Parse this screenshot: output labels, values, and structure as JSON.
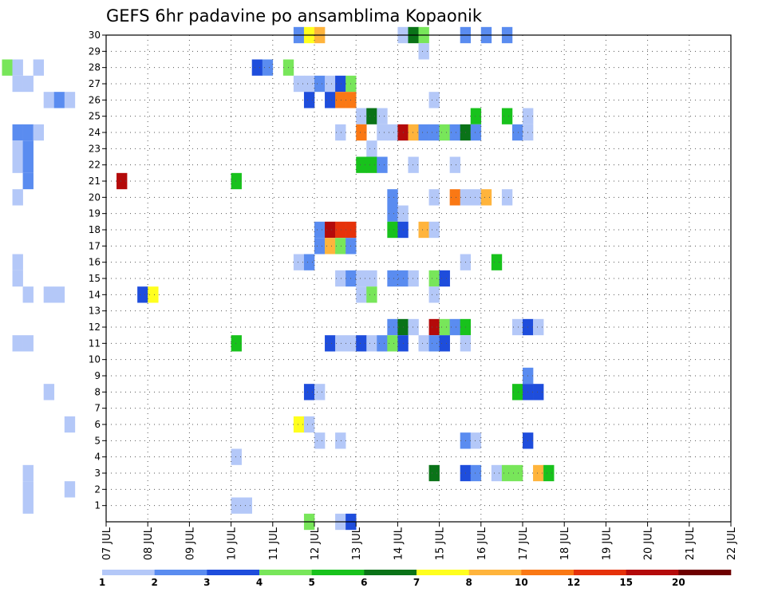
{
  "chart_data": {
    "type": "heatmap",
    "title": "GEFS 6hr padavine po ansamblima Kopaonik",
    "x_ticks": [
      "07 JUL",
      "08 JUL",
      "09 JUL",
      "10 JUL",
      "11 JUL",
      "12 JUL",
      "13 JUL",
      "14 JUL",
      "15 JUL",
      "16 JUL",
      "17 JUL",
      "18 JUL",
      "19 JUL",
      "20 JUL",
      "21 JUL",
      "22 JUL"
    ],
    "y_ticks": [
      1,
      2,
      3,
      4,
      5,
      6,
      7,
      8,
      9,
      10,
      11,
      12,
      13,
      14,
      15,
      16,
      17,
      18,
      19,
      20,
      21,
      22,
      23,
      24,
      25,
      26,
      27,
      28,
      29,
      30
    ],
    "x_start_day": 7,
    "x_end_day": 22,
    "x_step_hours": 6,
    "ylim": [
      0,
      30
    ],
    "grid": true,
    "colorbar": {
      "levels": [
        "1",
        "2",
        "3",
        "4",
        "5",
        "6",
        "7",
        "8",
        "10",
        "12",
        "15",
        "20"
      ],
      "colors": [
        "#b4c8f8",
        "#5a8cf0",
        "#1e4ddc",
        "#78e65a",
        "#18c21c",
        "#0a7318",
        "#ffff1e",
        "#ffb43c",
        "#fa7814",
        "#e6320a",
        "#b40a0a",
        "#6e0000"
      ]
    },
    "cells": [
      [
        11.5,
        30,
        2
      ],
      [
        11.75,
        30,
        7
      ],
      [
        12,
        30,
        8
      ],
      [
        14,
        30,
        1
      ],
      [
        14.25,
        30,
        6
      ],
      [
        14.5,
        30,
        4
      ],
      [
        15.5,
        30,
        2
      ],
      [
        16,
        30,
        2
      ],
      [
        16.5,
        30,
        2
      ],
      [
        14.5,
        29,
        1
      ],
      [
        4.5,
        28,
        4
      ],
      [
        4.75,
        28,
        1
      ],
      [
        5.25,
        28,
        1
      ],
      [
        10.5,
        28,
        3
      ],
      [
        10.75,
        28,
        2
      ],
      [
        11.25,
        28,
        4
      ],
      [
        4.75,
        27,
        1
      ],
      [
        5,
        27,
        1
      ],
      [
        11.5,
        27,
        1
      ],
      [
        11.75,
        27,
        1
      ],
      [
        12,
        27,
        2
      ],
      [
        12.25,
        27,
        1
      ],
      [
        12.5,
        27,
        3
      ],
      [
        12.75,
        27,
        4
      ],
      [
        5.5,
        26,
        1
      ],
      [
        5.75,
        26,
        2
      ],
      [
        6,
        26,
        1
      ],
      [
        11.75,
        26,
        3
      ],
      [
        12.25,
        26,
        3
      ],
      [
        12.5,
        26,
        9
      ],
      [
        12.75,
        26,
        9
      ],
      [
        14.75,
        26,
        1
      ],
      [
        13,
        25,
        1
      ],
      [
        13.25,
        25,
        6
      ],
      [
        13.5,
        25,
        1
      ],
      [
        15.75,
        25,
        5
      ],
      [
        16.5,
        25,
        5
      ],
      [
        17,
        25,
        1
      ],
      [
        4.75,
        24,
        2
      ],
      [
        5,
        24,
        2
      ],
      [
        5.25,
        24,
        1
      ],
      [
        12.5,
        24,
        1
      ],
      [
        13,
        24,
        9
      ],
      [
        13.5,
        24,
        1
      ],
      [
        13.75,
        24,
        1
      ],
      [
        14,
        24,
        11
      ],
      [
        14.25,
        24,
        8
      ],
      [
        14.5,
        24,
        2
      ],
      [
        14.75,
        24,
        2
      ],
      [
        15,
        24,
        4
      ],
      [
        15.25,
        24,
        2
      ],
      [
        15.5,
        24,
        6
      ],
      [
        15.75,
        24,
        2
      ],
      [
        16.75,
        24,
        2
      ],
      [
        17,
        24,
        1
      ],
      [
        4.75,
        23,
        1
      ],
      [
        5,
        23,
        2
      ],
      [
        13.25,
        23,
        1
      ],
      [
        4.75,
        22,
        1
      ],
      [
        5,
        22,
        2
      ],
      [
        13,
        22,
        5
      ],
      [
        13.25,
        22,
        5
      ],
      [
        13.5,
        22,
        2
      ],
      [
        14.25,
        22,
        1
      ],
      [
        15.25,
        22,
        1
      ],
      [
        5,
        21,
        2
      ],
      [
        7.25,
        21,
        11
      ],
      [
        10,
        21,
        5
      ],
      [
        4.75,
        20,
        1
      ],
      [
        13.75,
        20,
        2
      ],
      [
        14.75,
        20,
        1
      ],
      [
        15.25,
        20,
        9
      ],
      [
        15.5,
        20,
        1
      ],
      [
        15.75,
        20,
        1
      ],
      [
        16,
        20,
        8
      ],
      [
        16.5,
        20,
        1
      ],
      [
        13.75,
        19,
        2
      ],
      [
        14,
        19,
        1
      ],
      [
        12,
        18,
        2
      ],
      [
        12.25,
        18,
        11
      ],
      [
        12.5,
        18,
        10
      ],
      [
        12.75,
        18,
        10
      ],
      [
        13.75,
        18,
        5
      ],
      [
        14,
        18,
        3
      ],
      [
        14.5,
        18,
        8
      ],
      [
        14.75,
        18,
        1
      ],
      [
        12,
        17,
        2
      ],
      [
        12.25,
        17,
        8
      ],
      [
        12.5,
        17,
        4
      ],
      [
        12.75,
        17,
        2
      ],
      [
        4.75,
        16,
        1
      ],
      [
        11.5,
        16,
        1
      ],
      [
        11.75,
        16,
        2
      ],
      [
        15.5,
        16,
        1
      ],
      [
        16.25,
        16,
        5
      ],
      [
        4.75,
        15,
        1
      ],
      [
        12.5,
        15,
        1
      ],
      [
        12.75,
        15,
        2
      ],
      [
        13,
        15,
        1
      ],
      [
        13.25,
        15,
        1
      ],
      [
        13.75,
        15,
        2
      ],
      [
        14,
        15,
        2
      ],
      [
        14.25,
        15,
        1
      ],
      [
        14.75,
        15,
        4
      ],
      [
        15,
        15,
        3
      ],
      [
        5,
        14,
        1
      ],
      [
        5.5,
        14,
        1
      ],
      [
        5.75,
        14,
        1
      ],
      [
        7.75,
        14,
        3
      ],
      [
        8,
        14,
        7
      ],
      [
        13,
        14,
        1
      ],
      [
        13.25,
        14,
        4
      ],
      [
        14.75,
        14,
        1
      ],
      [
        13.75,
        12,
        2
      ],
      [
        14,
        12,
        6
      ],
      [
        14.25,
        12,
        1
      ],
      [
        14.75,
        12,
        11
      ],
      [
        15,
        12,
        4
      ],
      [
        15.25,
        12,
        2
      ],
      [
        15.5,
        12,
        5
      ],
      [
        16.75,
        12,
        1
      ],
      [
        17,
        12,
        3
      ],
      [
        17.25,
        12,
        1
      ],
      [
        4.75,
        11,
        1
      ],
      [
        5,
        11,
        1
      ],
      [
        10,
        11,
        5
      ],
      [
        12.25,
        11,
        3
      ],
      [
        12.5,
        11,
        1
      ],
      [
        12.75,
        11,
        1
      ],
      [
        13,
        11,
        3
      ],
      [
        13.25,
        11,
        1
      ],
      [
        13.5,
        11,
        2
      ],
      [
        13.75,
        11,
        4
      ],
      [
        14,
        11,
        3
      ],
      [
        14.5,
        11,
        1
      ],
      [
        14.75,
        11,
        2
      ],
      [
        15,
        11,
        3
      ],
      [
        15.5,
        11,
        1
      ],
      [
        17,
        9,
        2
      ],
      [
        5.5,
        8,
        1
      ],
      [
        11.75,
        8,
        3
      ],
      [
        12,
        8,
        1
      ],
      [
        16.75,
        8,
        5
      ],
      [
        17,
        8,
        3
      ],
      [
        17.25,
        8,
        3
      ],
      [
        11.5,
        6,
        7
      ],
      [
        11.75,
        6,
        1
      ],
      [
        6,
        6,
        1
      ],
      [
        12,
        5,
        1
      ],
      [
        12.5,
        5,
        1
      ],
      [
        15.5,
        5,
        2
      ],
      [
        15.75,
        5,
        1
      ],
      [
        17,
        5,
        3
      ],
      [
        10,
        4,
        1
      ],
      [
        5,
        3,
        1
      ],
      [
        14.75,
        3,
        6
      ],
      [
        15.5,
        3,
        3
      ],
      [
        15.75,
        3,
        2
      ],
      [
        16.25,
        3,
        1
      ],
      [
        16.5,
        3,
        4
      ],
      [
        16.75,
        3,
        4
      ],
      [
        17.25,
        3,
        8
      ],
      [
        17.5,
        3,
        5
      ],
      [
        5,
        2,
        1
      ],
      [
        6,
        2,
        1
      ],
      [
        5,
        1,
        1
      ],
      [
        10,
        1,
        1
      ],
      [
        10.25,
        1,
        1
      ],
      [
        11.75,
        0,
        4
      ],
      [
        12.5,
        0,
        1
      ],
      [
        12.75,
        0,
        3
      ]
    ]
  }
}
